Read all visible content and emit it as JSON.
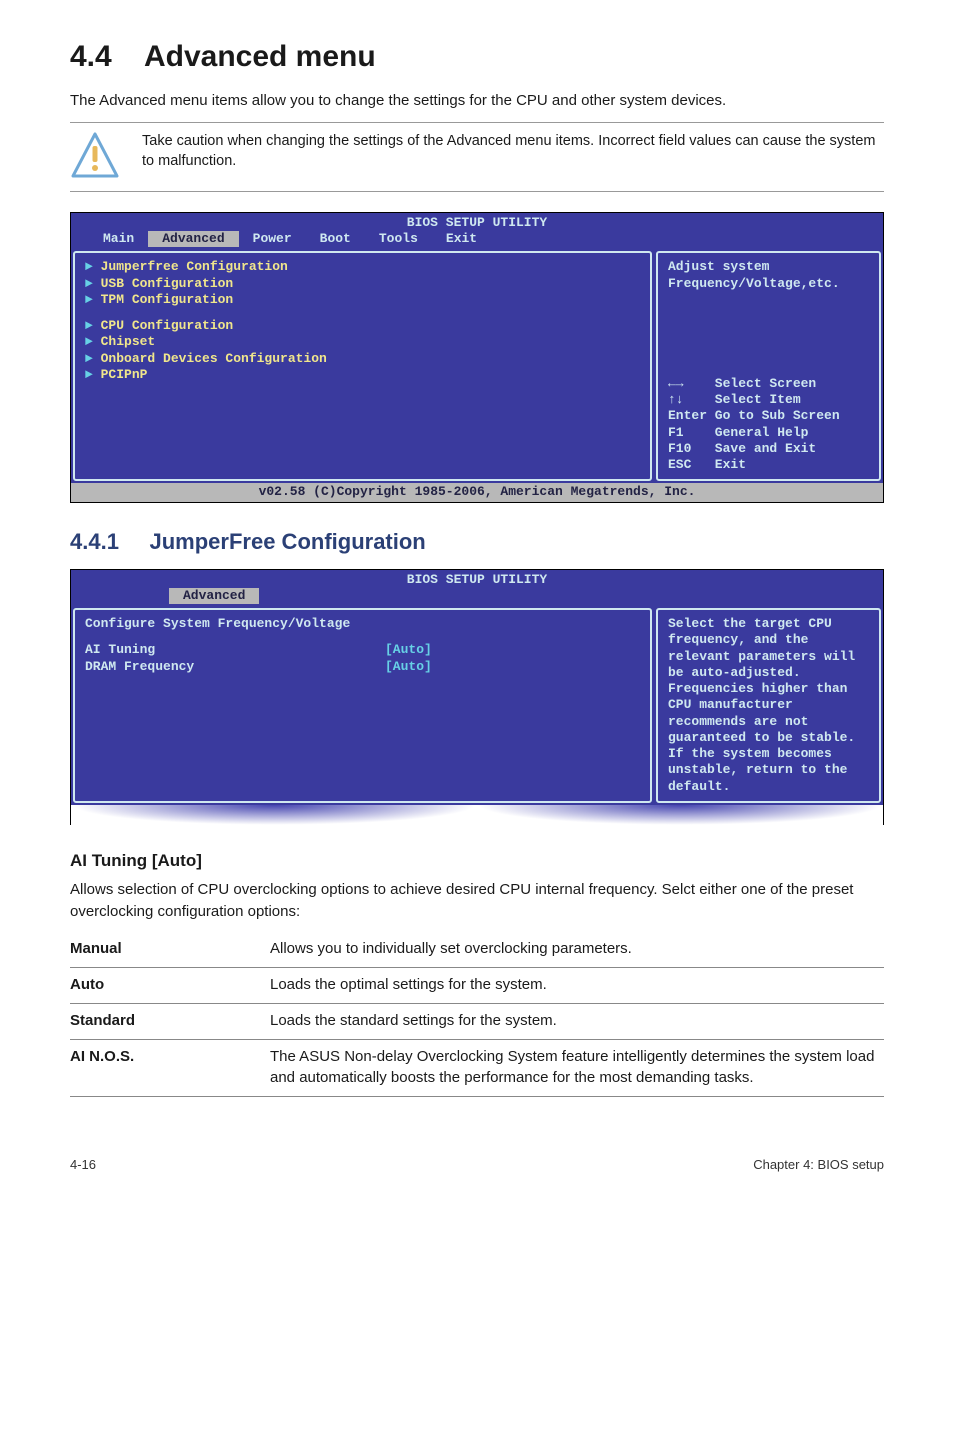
{
  "section": {
    "number": "4.4",
    "title": "Advanced menu",
    "intro": "The Advanced menu items allow you to change the settings for the CPU and other system devices.",
    "caution": "Take caution when changing the settings of the Advanced menu items. Incorrect field values can cause the system to malfunction."
  },
  "bios1": {
    "title": "BIOS SETUP UTILITY",
    "tabs": [
      "Main",
      "Advanced",
      "Power",
      "Boot",
      "Tools",
      "Exit"
    ],
    "selected_tab": "Advanced",
    "left_groups": [
      [
        "Jumperfree Configuration",
        "USB Configuration",
        "TPM Configuration"
      ],
      [
        "CPU Configuration",
        "Chipset",
        "Onboard Devices Configuration",
        "PCIPnP"
      ]
    ],
    "help_top": "Adjust system\nFrequency/Voltage,etc.",
    "help_keys": "←→    Select Screen\n↑↓    Select Item\nEnter Go to Sub Screen\nF1    General Help\nF10   Save and Exit\nESC   Exit",
    "footer": "v02.58 (C)Copyright 1985-2006, American Megatrends, Inc.",
    "colors": {
      "bg": "#3a3a9e",
      "border": "#cfe8f0",
      "menu_text": "#f0e68c",
      "help_text": "#cfe8f0",
      "accent": "#67d1e6",
      "footer_bg": "#b8b8b8",
      "footer_fg": "#222244"
    }
  },
  "subsection": {
    "number": "4.4.1",
    "title": "JumperFree Configuration"
  },
  "bios2": {
    "title": "BIOS SETUP UTILITY",
    "tab": "Advanced",
    "header": "Configure System Frequency/Voltage",
    "rows": [
      {
        "label": "AI Tuning",
        "value": "[Auto]"
      },
      {
        "label": "DRAM Frequency",
        "value": "[Auto]"
      }
    ],
    "help": "Select the target CPU frequency, and the relevant parameters will be auto-adjusted. Frequencies higher than CPU manufacturer recommends are not guaranteed to be stable. If the system becomes unstable, return to the default."
  },
  "aituning": {
    "heading": "AI Tuning [Auto]",
    "intro": "Allows selection of CPU overclocking options to achieve desired CPU internal frequency. Selct either one of the preset overclocking configuration options:",
    "rows": [
      {
        "key": "Manual",
        "desc": "Allows you to individually set overclocking parameters."
      },
      {
        "key": "Auto",
        "desc": "Loads the optimal settings for the system."
      },
      {
        "key": "Standard",
        "desc": "Loads the standard settings for the system."
      },
      {
        "key": "AI N.O.S.",
        "desc": "The ASUS Non-delay Overclocking System feature intelligently determines the system load and automatically boosts the performance for the most demanding tasks."
      }
    ]
  },
  "footer": {
    "left": "4-16",
    "right": "Chapter 4: BIOS setup"
  }
}
